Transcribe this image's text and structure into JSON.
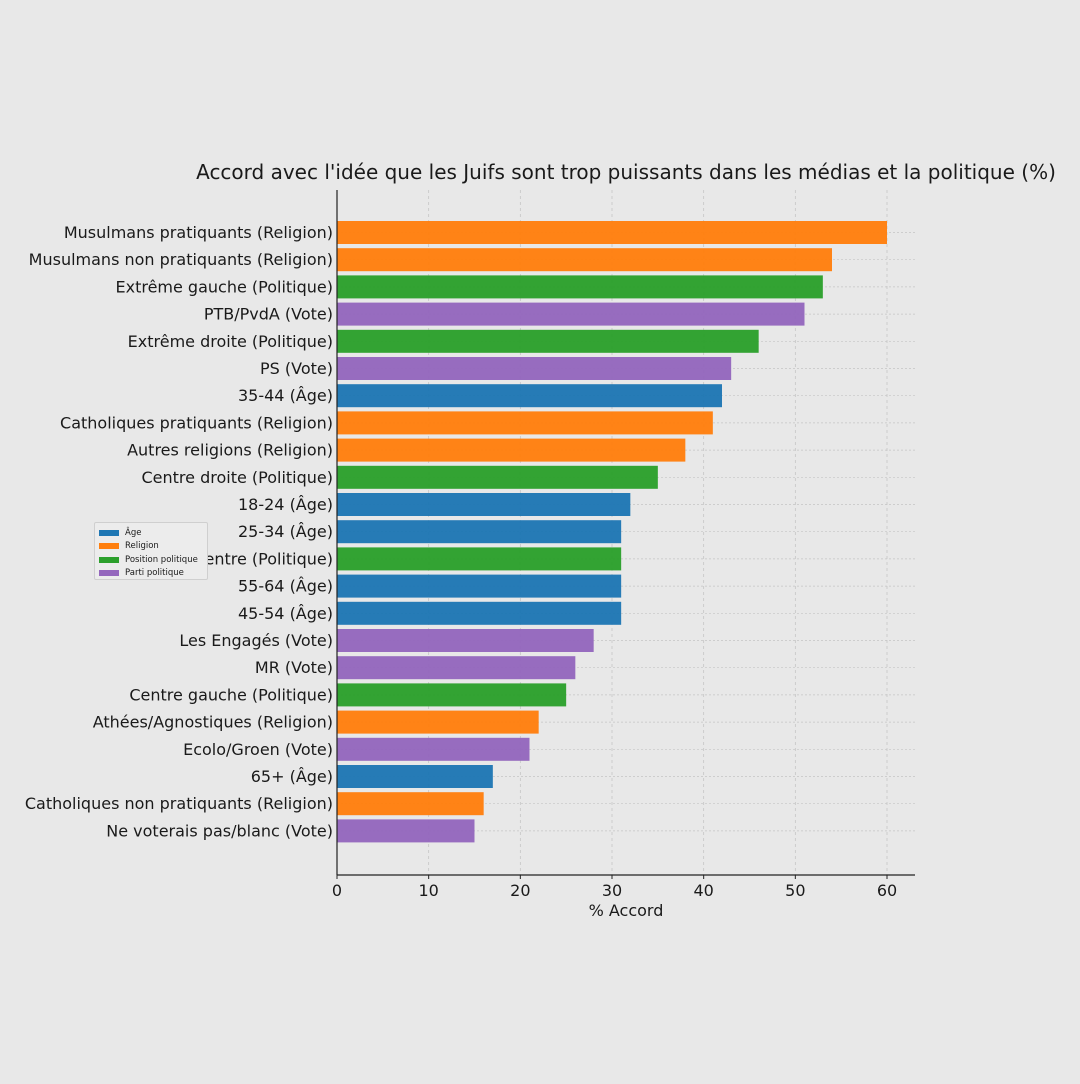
{
  "chart_data": {
    "type": "bar",
    "orientation": "horizontal",
    "title": "Accord avec l'idée que les Juifs sont trop puissants dans les médias et la politique (%)",
    "xlabel": "% Accord",
    "ylabel": "",
    "xlim": [
      0,
      63
    ],
    "xticks": [
      0,
      10,
      20,
      30,
      40,
      50,
      60
    ],
    "grid": true,
    "legend_position": "center-left",
    "legend": [
      {
        "label": "Âge",
        "color": "#1f77b4"
      },
      {
        "label": "Religion",
        "color": "#ff7f0e"
      },
      {
        "label": "Position politique",
        "color": "#2ca02c"
      },
      {
        "label": "Parti politique",
        "color": "#9467bd"
      }
    ],
    "bars": [
      {
        "label": "Musulmans pratiquants (Religion)",
        "value": 60,
        "group": "Religion"
      },
      {
        "label": "Musulmans non pratiquants (Religion)",
        "value": 54,
        "group": "Religion"
      },
      {
        "label": "Extrême gauche (Politique)",
        "value": 53,
        "group": "Position politique"
      },
      {
        "label": "PTB/PvdA (Vote)",
        "value": 51,
        "group": "Parti politique"
      },
      {
        "label": "Extrême droite (Politique)",
        "value": 46,
        "group": "Position politique"
      },
      {
        "label": "PS (Vote)",
        "value": 43,
        "group": "Parti politique"
      },
      {
        "label": "35-44 (Âge)",
        "value": 42,
        "group": "Âge"
      },
      {
        "label": "Catholiques pratiquants (Religion)",
        "value": 41,
        "group": "Religion"
      },
      {
        "label": "Autres religions (Religion)",
        "value": 38,
        "group": "Religion"
      },
      {
        "label": "Centre droite (Politique)",
        "value": 35,
        "group": "Position politique"
      },
      {
        "label": "18-24 (Âge)",
        "value": 32,
        "group": "Âge"
      },
      {
        "label": "25-34 (Âge)",
        "value": 31,
        "group": "Âge"
      },
      {
        "label": "Centre (Politique)",
        "value": 31,
        "group": "Position politique"
      },
      {
        "label": "55-64 (Âge)",
        "value": 31,
        "group": "Âge"
      },
      {
        "label": "45-54 (Âge)",
        "value": 31,
        "group": "Âge"
      },
      {
        "label": "Les Engagés (Vote)",
        "value": 28,
        "group": "Parti politique"
      },
      {
        "label": "MR (Vote)",
        "value": 26,
        "group": "Parti politique"
      },
      {
        "label": "Centre gauche (Politique)",
        "value": 25,
        "group": "Position politique"
      },
      {
        "label": "Athées/Agnostiques (Religion)",
        "value": 22,
        "group": "Religion"
      },
      {
        "label": "Ecolo/Groen (Vote)",
        "value": 21,
        "group": "Parti politique"
      },
      {
        "label": "65+ (Âge)",
        "value": 17,
        "group": "Âge"
      },
      {
        "label": "Catholiques non pratiquants (Religion)",
        "value": 16,
        "group": "Religion"
      },
      {
        "label": "Ne voterais pas/blanc (Vote)",
        "value": 15,
        "group": "Parti politique"
      }
    ]
  }
}
